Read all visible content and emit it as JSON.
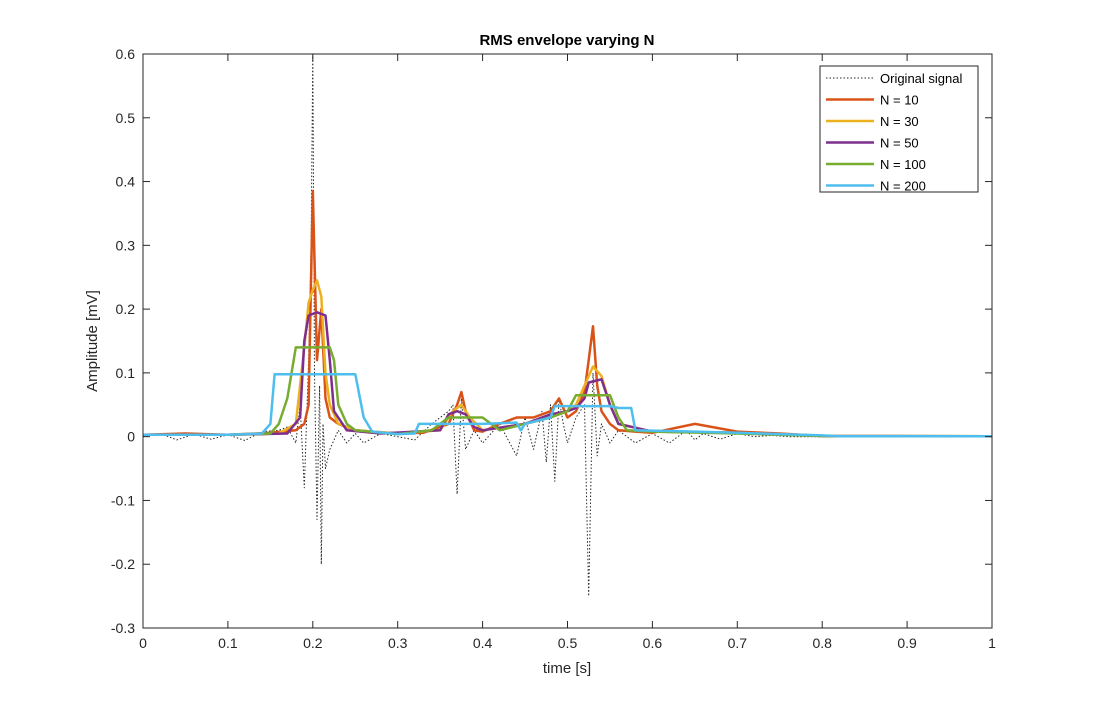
{
  "chart_data": {
    "type": "line",
    "title": "RMS envelope varying N",
    "xlabel": "time [s]",
    "ylabel": "Amplitude [mV]",
    "xlim": [
      0,
      1
    ],
    "ylim": [
      -0.3,
      0.6
    ],
    "xticks": [
      0,
      0.1,
      0.2,
      0.3,
      0.4,
      0.5,
      0.6,
      0.7,
      0.8,
      0.9,
      1
    ],
    "xtick_labels": [
      "0",
      "0.1",
      "0.2",
      "0.3",
      "0.4",
      "0.5",
      "0.6",
      "0.7",
      "0.8",
      "0.9",
      "1"
    ],
    "yticks": [
      -0.3,
      -0.2,
      -0.1,
      0,
      0.1,
      0.2,
      0.3,
      0.4,
      0.5,
      0.6
    ],
    "ytick_labels": [
      "-0.3",
      "-0.2",
      "-0.1",
      "0",
      "0.1",
      "0.2",
      "0.3",
      "0.4",
      "0.5",
      "0.6"
    ],
    "grid": false,
    "legend_position": "top-right",
    "series": [
      {
        "name": "Original signal",
        "color": "#262626",
        "style": "dotted",
        "x": [
          0,
          0.02,
          0.04,
          0.06,
          0.08,
          0.1,
          0.12,
          0.14,
          0.16,
          0.17,
          0.18,
          0.185,
          0.19,
          0.195,
          0.198,
          0.2,
          0.202,
          0.205,
          0.208,
          0.21,
          0.212,
          0.215,
          0.22,
          0.23,
          0.24,
          0.25,
          0.26,
          0.28,
          0.3,
          0.32,
          0.34,
          0.36,
          0.365,
          0.37,
          0.375,
          0.38,
          0.39,
          0.4,
          0.42,
          0.44,
          0.45,
          0.46,
          0.47,
          0.475,
          0.48,
          0.485,
          0.49,
          0.495,
          0.5,
          0.51,
          0.52,
          0.525,
          0.53,
          0.535,
          0.54,
          0.55,
          0.56,
          0.58,
          0.6,
          0.62,
          0.64,
          0.65,
          0.66,
          0.68,
          0.7,
          0.72,
          0.74,
          0.76,
          0.8,
          0.85,
          0.9,
          0.95,
          1.0
        ],
        "y": [
          0,
          0.005,
          -0.005,
          0.004,
          -0.004,
          0.003,
          -0.006,
          0.008,
          0.01,
          0.015,
          -0.01,
          0.05,
          -0.08,
          0.12,
          0.3,
          0.6,
          0.1,
          -0.13,
          0.08,
          -0.2,
          0.02,
          -0.05,
          -0.02,
          0.01,
          -0.01,
          0.005,
          -0.01,
          0.005,
          0,
          -0.005,
          0.02,
          0.04,
          0.05,
          -0.09,
          0.06,
          -0.02,
          0.01,
          -0.01,
          0.02,
          -0.03,
          0.03,
          -0.02,
          0.04,
          -0.04,
          0.05,
          -0.07,
          0.06,
          0.02,
          -0.01,
          0.03,
          0.05,
          -0.25,
          0.1,
          -0.03,
          0.02,
          -0.01,
          0.01,
          -0.01,
          0.005,
          -0.01,
          0.01,
          -0.005,
          0.005,
          -0.004,
          0.005,
          0,
          0.002,
          0,
          0,
          0,
          0,
          0,
          0
        ]
      },
      {
        "name": "N = 10",
        "color": "#D95319",
        "style": "solid",
        "x": [
          0,
          0.05,
          0.1,
          0.15,
          0.18,
          0.19,
          0.195,
          0.2,
          0.205,
          0.21,
          0.215,
          0.22,
          0.23,
          0.25,
          0.27,
          0.3,
          0.33,
          0.36,
          0.37,
          0.375,
          0.38,
          0.39,
          0.4,
          0.42,
          0.44,
          0.46,
          0.48,
          0.49,
          0.5,
          0.51,
          0.52,
          0.525,
          0.53,
          0.535,
          0.54,
          0.55,
          0.56,
          0.58,
          0.6,
          0.65,
          0.7,
          0.75,
          0.8,
          1.0
        ],
        "y": [
          0.003,
          0.005,
          0.003,
          0.006,
          0.01,
          0.02,
          0.05,
          0.385,
          0.12,
          0.2,
          0.06,
          0.03,
          0.02,
          0.01,
          0.008,
          0.005,
          0.006,
          0.02,
          0.05,
          0.07,
          0.04,
          0.01,
          0.008,
          0.02,
          0.03,
          0.03,
          0.04,
          0.06,
          0.03,
          0.04,
          0.07,
          0.12,
          0.173,
          0.08,
          0.04,
          0.02,
          0.01,
          0.008,
          0.006,
          0.02,
          0.008,
          0.005,
          0.001,
          0.0005
        ]
      },
      {
        "name": "N = 30",
        "color": "#EDB120",
        "style": "solid",
        "x": [
          0,
          0.1,
          0.16,
          0.18,
          0.19,
          0.195,
          0.2,
          0.205,
          0.21,
          0.215,
          0.22,
          0.23,
          0.25,
          0.3,
          0.35,
          0.365,
          0.375,
          0.385,
          0.4,
          0.45,
          0.48,
          0.5,
          0.51,
          0.52,
          0.53,
          0.54,
          0.55,
          0.56,
          0.6,
          0.7,
          0.8,
          1.0
        ],
        "y": [
          0.003,
          0.003,
          0.005,
          0.02,
          0.14,
          0.21,
          0.23,
          0.245,
          0.22,
          0.1,
          0.05,
          0.02,
          0.01,
          0.005,
          0.01,
          0.04,
          0.05,
          0.03,
          0.01,
          0.02,
          0.03,
          0.04,
          0.05,
          0.08,
          0.11,
          0.095,
          0.05,
          0.02,
          0.008,
          0.006,
          0.001,
          0.0005
        ]
      },
      {
        "name": "N = 50",
        "color": "#7E2F8E",
        "style": "solid",
        "x": [
          0,
          0.1,
          0.17,
          0.185,
          0.19,
          0.195,
          0.205,
          0.215,
          0.22,
          0.225,
          0.24,
          0.28,
          0.35,
          0.36,
          0.37,
          0.38,
          0.39,
          0.4,
          0.45,
          0.48,
          0.5,
          0.51,
          0.52,
          0.525,
          0.54,
          0.55,
          0.56,
          0.6,
          0.7,
          0.8,
          1.0
        ],
        "y": [
          0.003,
          0.003,
          0.005,
          0.03,
          0.15,
          0.19,
          0.195,
          0.19,
          0.12,
          0.04,
          0.01,
          0.005,
          0.01,
          0.035,
          0.04,
          0.035,
          0.015,
          0.01,
          0.02,
          0.035,
          0.04,
          0.045,
          0.06,
          0.085,
          0.09,
          0.05,
          0.02,
          0.008,
          0.006,
          0.001,
          0.0005
        ]
      },
      {
        "name": "N = 100",
        "color": "#77AC30",
        "style": "solid",
        "x": [
          0,
          0.1,
          0.15,
          0.16,
          0.17,
          0.18,
          0.22,
          0.225,
          0.23,
          0.24,
          0.25,
          0.3,
          0.34,
          0.35,
          0.36,
          0.4,
          0.41,
          0.42,
          0.45,
          0.48,
          0.5,
          0.51,
          0.55,
          0.56,
          0.57,
          0.6,
          0.7,
          0.8,
          1.0
        ],
        "y": [
          0.003,
          0.003,
          0.005,
          0.02,
          0.06,
          0.14,
          0.14,
          0.12,
          0.05,
          0.02,
          0.01,
          0.004,
          0.01,
          0.02,
          0.03,
          0.03,
          0.02,
          0.01,
          0.02,
          0.03,
          0.04,
          0.065,
          0.065,
          0.03,
          0.01,
          0.008,
          0.005,
          0.001,
          0.0005
        ]
      },
      {
        "name": "N = 200",
        "color": "#4DBEEE",
        "style": "solid",
        "x": [
          0,
          0.1,
          0.14,
          0.15,
          0.155,
          0.25,
          0.26,
          0.27,
          0.3,
          0.32,
          0.325,
          0.4,
          0.44,
          0.445,
          0.45,
          0.48,
          0.485,
          0.55,
          0.56,
          0.575,
          0.58,
          0.65,
          0.7,
          0.75,
          0.8,
          0.82,
          1.0
        ],
        "y": [
          0.003,
          0.003,
          0.005,
          0.02,
          0.098,
          0.098,
          0.03,
          0.008,
          0.004,
          0.005,
          0.02,
          0.02,
          0.022,
          0.01,
          0.02,
          0.03,
          0.048,
          0.048,
          0.045,
          0.045,
          0.01,
          0.008,
          0.006,
          0.004,
          0.002,
          0.0005,
          0.0005
        ]
      }
    ]
  }
}
